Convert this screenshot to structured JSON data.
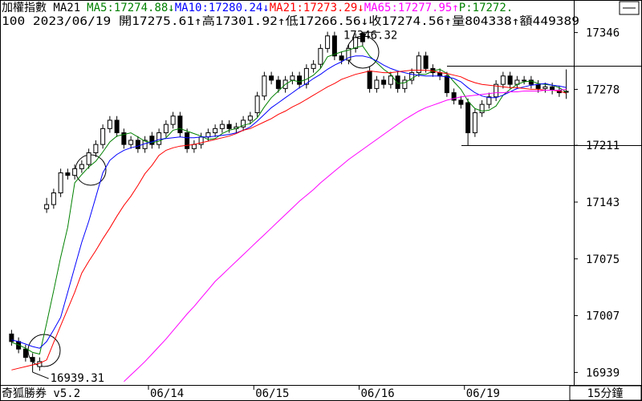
{
  "chart_data": {
    "type": "candlestick",
    "title": "加權指數 MA21",
    "header_segments": [
      {
        "text": "MA5:17274.88↓",
        "color": "#008000"
      },
      {
        "text": "MA10:17280.24↓",
        "color": "#0000ff"
      },
      {
        "text": "MA21:17273.29↓",
        "color": "#ff0000"
      },
      {
        "text": "MA65:17277.95↑",
        "color": "#ff00ff"
      },
      {
        "text": "P:17272.",
        "color": "#008000"
      }
    ],
    "subtitle": "100 2023/06/19 開17275.61↑高17301.92↑低17266.56↓收17274.56↑量804338↑額449389",
    "footer": "奇狐勝券 v5.2",
    "period": "15分鐘",
    "categories": [
      null,
      null,
      null,
      null,
      null,
      null,
      null,
      null,
      null,
      null,
      null,
      null,
      null,
      null,
      null,
      null,
      null,
      null,
      null,
      null,
      "06/14",
      null,
      null,
      null,
      null,
      null,
      null,
      null,
      null,
      null,
      null,
      null,
      null,
      null,
      null,
      "06/15",
      null,
      null,
      null,
      null,
      null,
      null,
      null,
      null,
      null,
      null,
      null,
      null,
      null,
      null,
      "06/16",
      null,
      null,
      null,
      null,
      null,
      null,
      null,
      null,
      null,
      null,
      null,
      null,
      null,
      null,
      "06/19",
      null,
      null,
      null,
      null,
      null,
      null,
      null,
      null,
      null,
      null,
      null,
      null,
      null,
      null
    ],
    "open": [
      16985,
      16976,
      16967,
      16957,
      16946,
      17135,
      17140,
      17154,
      17178,
      17175,
      17183,
      17188,
      17202,
      17212,
      17231,
      17241,
      17226,
      17212,
      17217,
      17207,
      17222,
      17212,
      17226,
      17236,
      17246,
      17226,
      17207,
      17212,
      17221,
      17226,
      17231,
      17236,
      17231,
      17233,
      17241,
      17250,
      17270,
      17294,
      17289,
      17279,
      17289,
      17294,
      17284,
      17303,
      17308,
      17327,
      17342,
      17318,
      17313,
      17327,
      17345,
      17300,
      17279,
      17289,
      17284,
      17294,
      17279,
      17289,
      17298,
      17318,
      17303,
      17298,
      17294,
      17274,
      17265,
      17262,
      17226,
      17250,
      17260,
      17269,
      17284,
      17294,
      17284,
      17289,
      17289,
      17284,
      17279,
      17281,
      17277,
      17275.61
    ],
    "high": [
      16990,
      16981,
      16972,
      16962,
      16957,
      17148,
      17159,
      17183,
      17183,
      17188,
      17193,
      17207,
      17217,
      17236,
      17246,
      17246,
      17231,
      17222,
      17222,
      17222,
      17227,
      17231,
      17241,
      17251,
      17251,
      17231,
      17217,
      17226,
      17231,
      17236,
      17241,
      17241,
      17238,
      17246,
      17251,
      17275,
      17299,
      17299,
      17294,
      17294,
      17299,
      17299,
      17308,
      17313,
      17332,
      17347,
      17347,
      17323,
      17332,
      17345,
      17346.32,
      17305,
      17294,
      17294,
      17299,
      17299,
      17294,
      17303,
      17323,
      17323,
      17308,
      17303,
      17299,
      17279,
      17270,
      17267,
      17255,
      17265,
      17274,
      17289,
      17299,
      17299,
      17294,
      17294,
      17294,
      17289,
      17286,
      17286,
      17282,
      17301.92
    ],
    "low": [
      16971,
      16962,
      16952,
      16939.31,
      16941,
      17130,
      17135,
      17149,
      17170,
      17170,
      17178,
      17183,
      17197,
      17207,
      17226,
      17221,
      17207,
      17207,
      17202,
      17202,
      17207,
      17207,
      17221,
      17231,
      17221,
      17202,
      17202,
      17207,
      17216,
      17221,
      17226,
      17226,
      17226,
      17228,
      17236,
      17245,
      17265,
      17284,
      17274,
      17274,
      17284,
      17279,
      17279,
      17298,
      17303,
      17322,
      17313,
      17308,
      17308,
      17322,
      17330,
      17274,
      17274,
      17279,
      17279,
      17274,
      17274,
      17284,
      17293,
      17298,
      17293,
      17289,
      17269,
      17260,
      17255,
      17211,
      17221,
      17245,
      17255,
      17264,
      17279,
      17279,
      17279,
      17284,
      17279,
      17274,
      17274,
      17272,
      17269,
      17266.56
    ],
    "close": [
      16976,
      16967,
      16957,
      16952,
      16952,
      17140,
      17154,
      17178,
      17175,
      17183,
      17188,
      17202,
      17212,
      17231,
      17241,
      17226,
      17212,
      17217,
      17207,
      17217,
      17212,
      17226,
      17236,
      17246,
      17226,
      17207,
      17212,
      17221,
      17226,
      17231,
      17236,
      17231,
      17233,
      17241,
      17246,
      17270,
      17294,
      17289,
      17279,
      17289,
      17294,
      17284,
      17303,
      17308,
      17327,
      17342,
      17318,
      17313,
      17327,
      17340,
      17335,
      17279,
      17289,
      17284,
      17294,
      17279,
      17289,
      17298,
      17318,
      17303,
      17298,
      17294,
      17274,
      17265,
      17260,
      17226,
      17250,
      17260,
      17269,
      17284,
      17294,
      17284,
      17289,
      17289,
      17284,
      17279,
      17281,
      17277,
      17274,
      17274.56
    ],
    "series": [
      {
        "color": "#008000",
        "values": [
          16975,
          16972,
          16968,
          16963,
          16961,
          16998,
          17037,
          17077,
          17113,
          17166,
          17176,
          17185,
          17192,
          17203,
          17215,
          17222,
          17224,
          17226,
          17221,
          17216,
          17214,
          17216,
          17220,
          17229,
          17231,
          17228,
          17225,
          17222,
          17218,
          17219,
          17225,
          17229,
          17231,
          17235,
          17237,
          17244,
          17257,
          17268,
          17276,
          17284,
          17289,
          17287,
          17290,
          17295,
          17303,
          17317,
          17320,
          17323,
          17325,
          17328,
          17330,
          17318,
          17310,
          17302,
          17296,
          17285,
          17286,
          17291,
          17296,
          17296,
          17300,
          17302,
          17297,
          17287,
          17278,
          17264,
          17255,
          17252,
          17253,
          17258,
          17271,
          17278,
          17284,
          17287,
          17288,
          17285,
          17284,
          17283,
          17280,
          17274.88
        ]
      },
      {
        "color": "#0000ff",
        "values": [
          16978,
          16976,
          16973,
          16970,
          16968,
          16976,
          16990,
          17005,
          17035,
          17065,
          17095,
          17120,
          17149,
          17178,
          17193,
          17200,
          17205,
          17208,
          17210,
          17213,
          17215,
          17218,
          17219,
          17220,
          17221,
          17220,
          17220,
          17221,
          17221,
          17222,
          17223,
          17224,
          17226,
          17229,
          17233,
          17240,
          17248,
          17256,
          17262,
          17268,
          17274,
          17280,
          17285,
          17291,
          17296,
          17302,
          17307,
          17311,
          17316,
          17318,
          17318,
          17316,
          17312,
          17307,
          17303,
          17300,
          17298,
          17296,
          17295,
          17294,
          17294,
          17294,
          17293,
          17291,
          17287,
          17280,
          17274,
          17270,
          17268,
          17268,
          17271,
          17275,
          17279,
          17281,
          17283,
          17284,
          17285,
          17283,
          17282,
          17280.24
        ]
      },
      {
        "color": "#ff0000",
        "values": [
          16942,
          16944,
          16946,
          16948,
          16950,
          16954,
          16975,
          16995,
          17015,
          17035,
          17058,
          17072,
          17085,
          17099,
          17112,
          17126,
          17139,
          17150,
          17163,
          17177,
          17187,
          17199,
          17205,
          17208,
          17210,
          17211,
          17212,
          17214,
          17216,
          17218,
          17220,
          17222,
          17225,
          17229,
          17231,
          17235,
          17239,
          17243,
          17248,
          17252,
          17257,
          17261,
          17266,
          17271,
          17276,
          17281,
          17285,
          17290,
          17293,
          17296,
          17298,
          17300,
          17299,
          17298,
          17298,
          17299,
          17300,
          17301,
          17301,
          17301,
          17300,
          17298,
          17297,
          17295,
          17293,
          17289,
          17286,
          17284,
          17283,
          17282,
          17281,
          17280,
          17280,
          17279,
          17278,
          17278,
          17277,
          17277,
          17276,
          17273.29
        ]
      },
      {
        "color": "#ff00ff",
        "values": [
          null,
          null,
          null,
          null,
          null,
          null,
          null,
          null,
          null,
          null,
          null,
          null,
          null,
          null,
          null,
          null,
          16928,
          16936,
          16944,
          16952,
          16961,
          16970,
          16979,
          16989,
          16999,
          17009,
          17018,
          17028,
          17038,
          17048,
          17056,
          17064,
          17072,
          17080,
          17088,
          17096,
          17104,
          17112,
          17120,
          17128,
          17136,
          17144,
          17151,
          17158,
          17166,
          17173,
          17180,
          17187,
          17194,
          17200,
          17206,
          17212,
          17218,
          17224,
          17230,
          17236,
          17242,
          17247,
          17252,
          17256,
          17259,
          17262,
          17265,
          17267,
          17269,
          17270,
          17271,
          17272,
          17273,
          17274,
          17274,
          17275,
          17275,
          17276,
          17276,
          17276,
          17277,
          17277,
          17277,
          17277.95
        ]
      }
    ],
    "ylim": [
      16924,
      17385
    ],
    "yticks": [
      16939,
      17007,
      17075,
      17143,
      17211,
      17278,
      17346
    ]
  }
}
